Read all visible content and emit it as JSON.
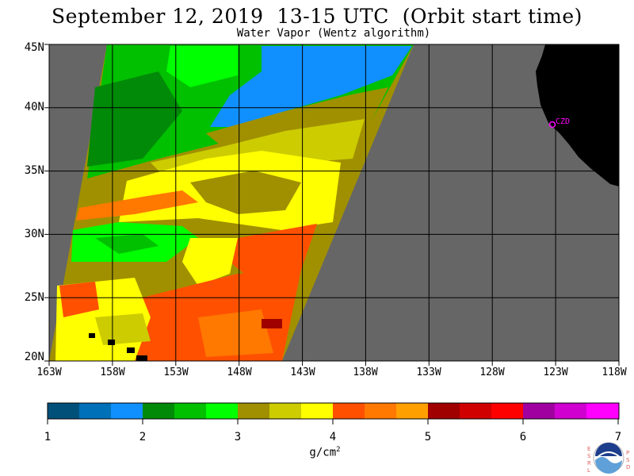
{
  "title": "September 12, 2019  13-15 UTC  (Orbit start time)",
  "subtitle": "Water Vapor (Wentz algorithm)",
  "lat_labels": [
    "45N",
    "40N",
    "35N",
    "30N",
    "25N",
    "20N"
  ],
  "lon_labels": [
    "163W",
    "158W",
    "153W",
    "148W",
    "143W",
    "138W",
    "133W",
    "128W",
    "123W",
    "118W"
  ],
  "station": {
    "code": "CZD"
  },
  "colorbar": {
    "ticks": [
      "1",
      "2",
      "3",
      "4",
      "5",
      "6",
      "7"
    ],
    "unit": "g/cm",
    "unit_exp": "2",
    "colors": [
      "#00507a",
      "#0070b8",
      "#1090ff",
      "#008a08",
      "#00c000",
      "#00ff00",
      "#a09000",
      "#cccc00",
      "#ffff00",
      "#ff5000",
      "#ff7800",
      "#ffa000",
      "#a00000",
      "#d00000",
      "#ff0000",
      "#a000a0",
      "#d000d0",
      "#ff00ff"
    ]
  },
  "colors": {
    "land": "#000000",
    "ocean_no_data": "#666666",
    "grid": "#000000",
    "station_marker": "#ff00ff"
  },
  "logo": {
    "center": "NOAA",
    "left": [
      "E",
      "S",
      "R",
      "L"
    ],
    "right": [
      "P",
      "S",
      "D"
    ]
  }
}
